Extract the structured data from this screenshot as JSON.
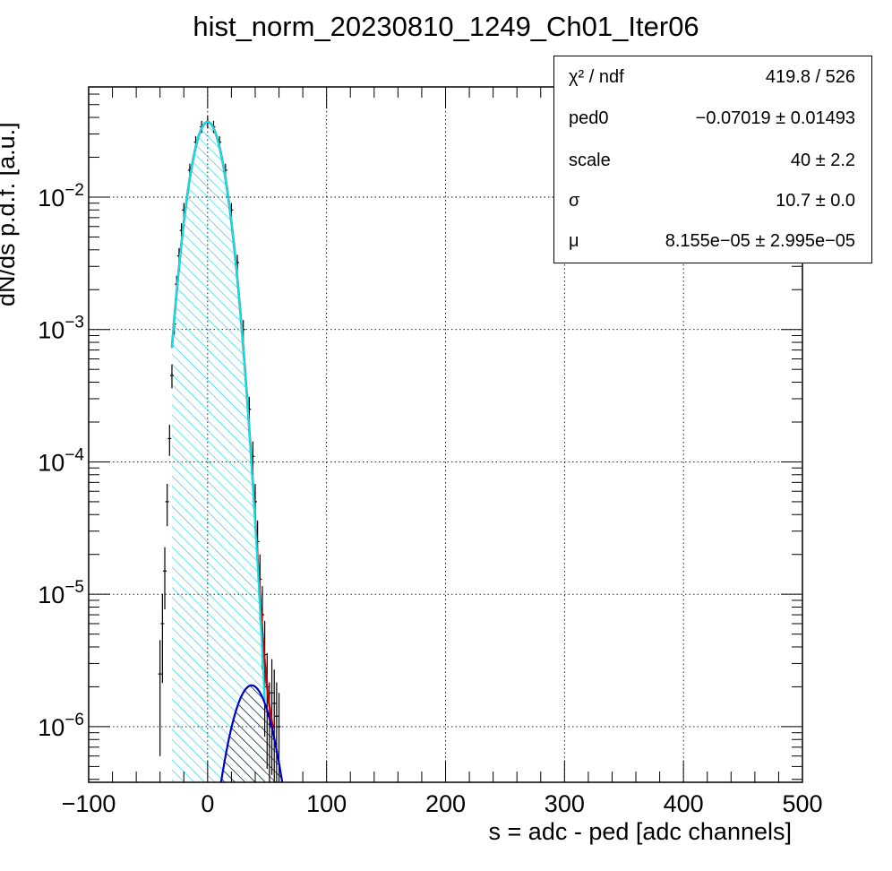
{
  "chart_data": {
    "type": "histogram",
    "title": "hist_norm_20230810_1249_Ch01_Iter06",
    "xlabel": "s = adc - ped [adc channels]",
    "ylabel": "dN/ds p.d.f. [a.u.]",
    "xlim": [
      -100,
      500
    ],
    "ylim": [
      3.8e-07,
      0.068
    ],
    "y_scale": "log",
    "grid": true,
    "x_ticks": [
      {
        "value": -100,
        "label": "−100"
      },
      {
        "value": 0,
        "label": "0"
      },
      {
        "value": 100,
        "label": "100"
      },
      {
        "value": 200,
        "label": "200"
      },
      {
        "value": 300,
        "label": "300"
      },
      {
        "value": 400,
        "label": "400"
      },
      {
        "value": 500,
        "label": "500"
      }
    ],
    "y_ticks": [
      {
        "value": 0.01,
        "base": "10",
        "exp": "−2"
      },
      {
        "value": 0.001,
        "base": "10",
        "exp": "−3"
      },
      {
        "value": 0.0001,
        "base": "10",
        "exp": "−4"
      },
      {
        "value": 1e-05,
        "base": "10",
        "exp": "−5"
      },
      {
        "value": 1e-06,
        "base": "10",
        "exp": "−6"
      }
    ],
    "series": [
      {
        "kind": "data_points",
        "color": "#000000",
        "x": [
          -40,
          -38,
          -36,
          -34,
          -32,
          -30,
          -28,
          -26,
          -24,
          -22,
          -20,
          -15,
          -10,
          -5,
          0,
          5,
          10,
          15,
          20,
          25,
          30,
          35,
          38,
          40,
          42,
          44,
          46,
          48,
          50,
          52,
          54,
          56,
          58,
          60
        ],
        "y": [
          2.5e-06,
          6e-06,
          1.5e-05,
          5e-05,
          0.00015,
          0.00045,
          0.0011,
          0.0022,
          0.0036,
          0.0056,
          0.008,
          0.016,
          0.026,
          0.034,
          0.037,
          0.034,
          0.026,
          0.016,
          0.008,
          0.0032,
          0.001,
          0.00025,
          0.00011,
          5e-05,
          2.5e-05,
          1.3e-05,
          7e-06,
          3.5e-06,
          2e-06,
          1.2e-06,
          1.8e-06,
          1.5e-06,
          1.2e-06,
          1e-06
        ]
      },
      {
        "kind": "total_fit",
        "color": "#cc0000",
        "x_range": [
          -30,
          55
        ]
      },
      {
        "kind": "pedestal_component",
        "color": "#00e5ee",
        "fill": "hatched",
        "mean": 0,
        "sigma": 10.7,
        "peak": 0.037,
        "x_range": [
          -30,
          48
        ]
      },
      {
        "kind": "signal_component",
        "color": "#0000cc",
        "fill": "hatched",
        "mean": 37,
        "sigma": 14,
        "peak": 2.05e-06,
        "x_range": [
          10,
          68
        ]
      }
    ]
  },
  "stats": {
    "rows": [
      {
        "name": "χ² / ndf",
        "value": "419.8 / 526"
      },
      {
        "name": "ped0",
        "value": "−0.07019  ± 0.01493"
      },
      {
        "name": "scale",
        "value": "40  ± 2.2"
      },
      {
        "name": "σ",
        "value": "10.7  ± 0.0"
      },
      {
        "name": "μ",
        "value": "8.155e−05 ± 2.995e−05"
      }
    ]
  }
}
